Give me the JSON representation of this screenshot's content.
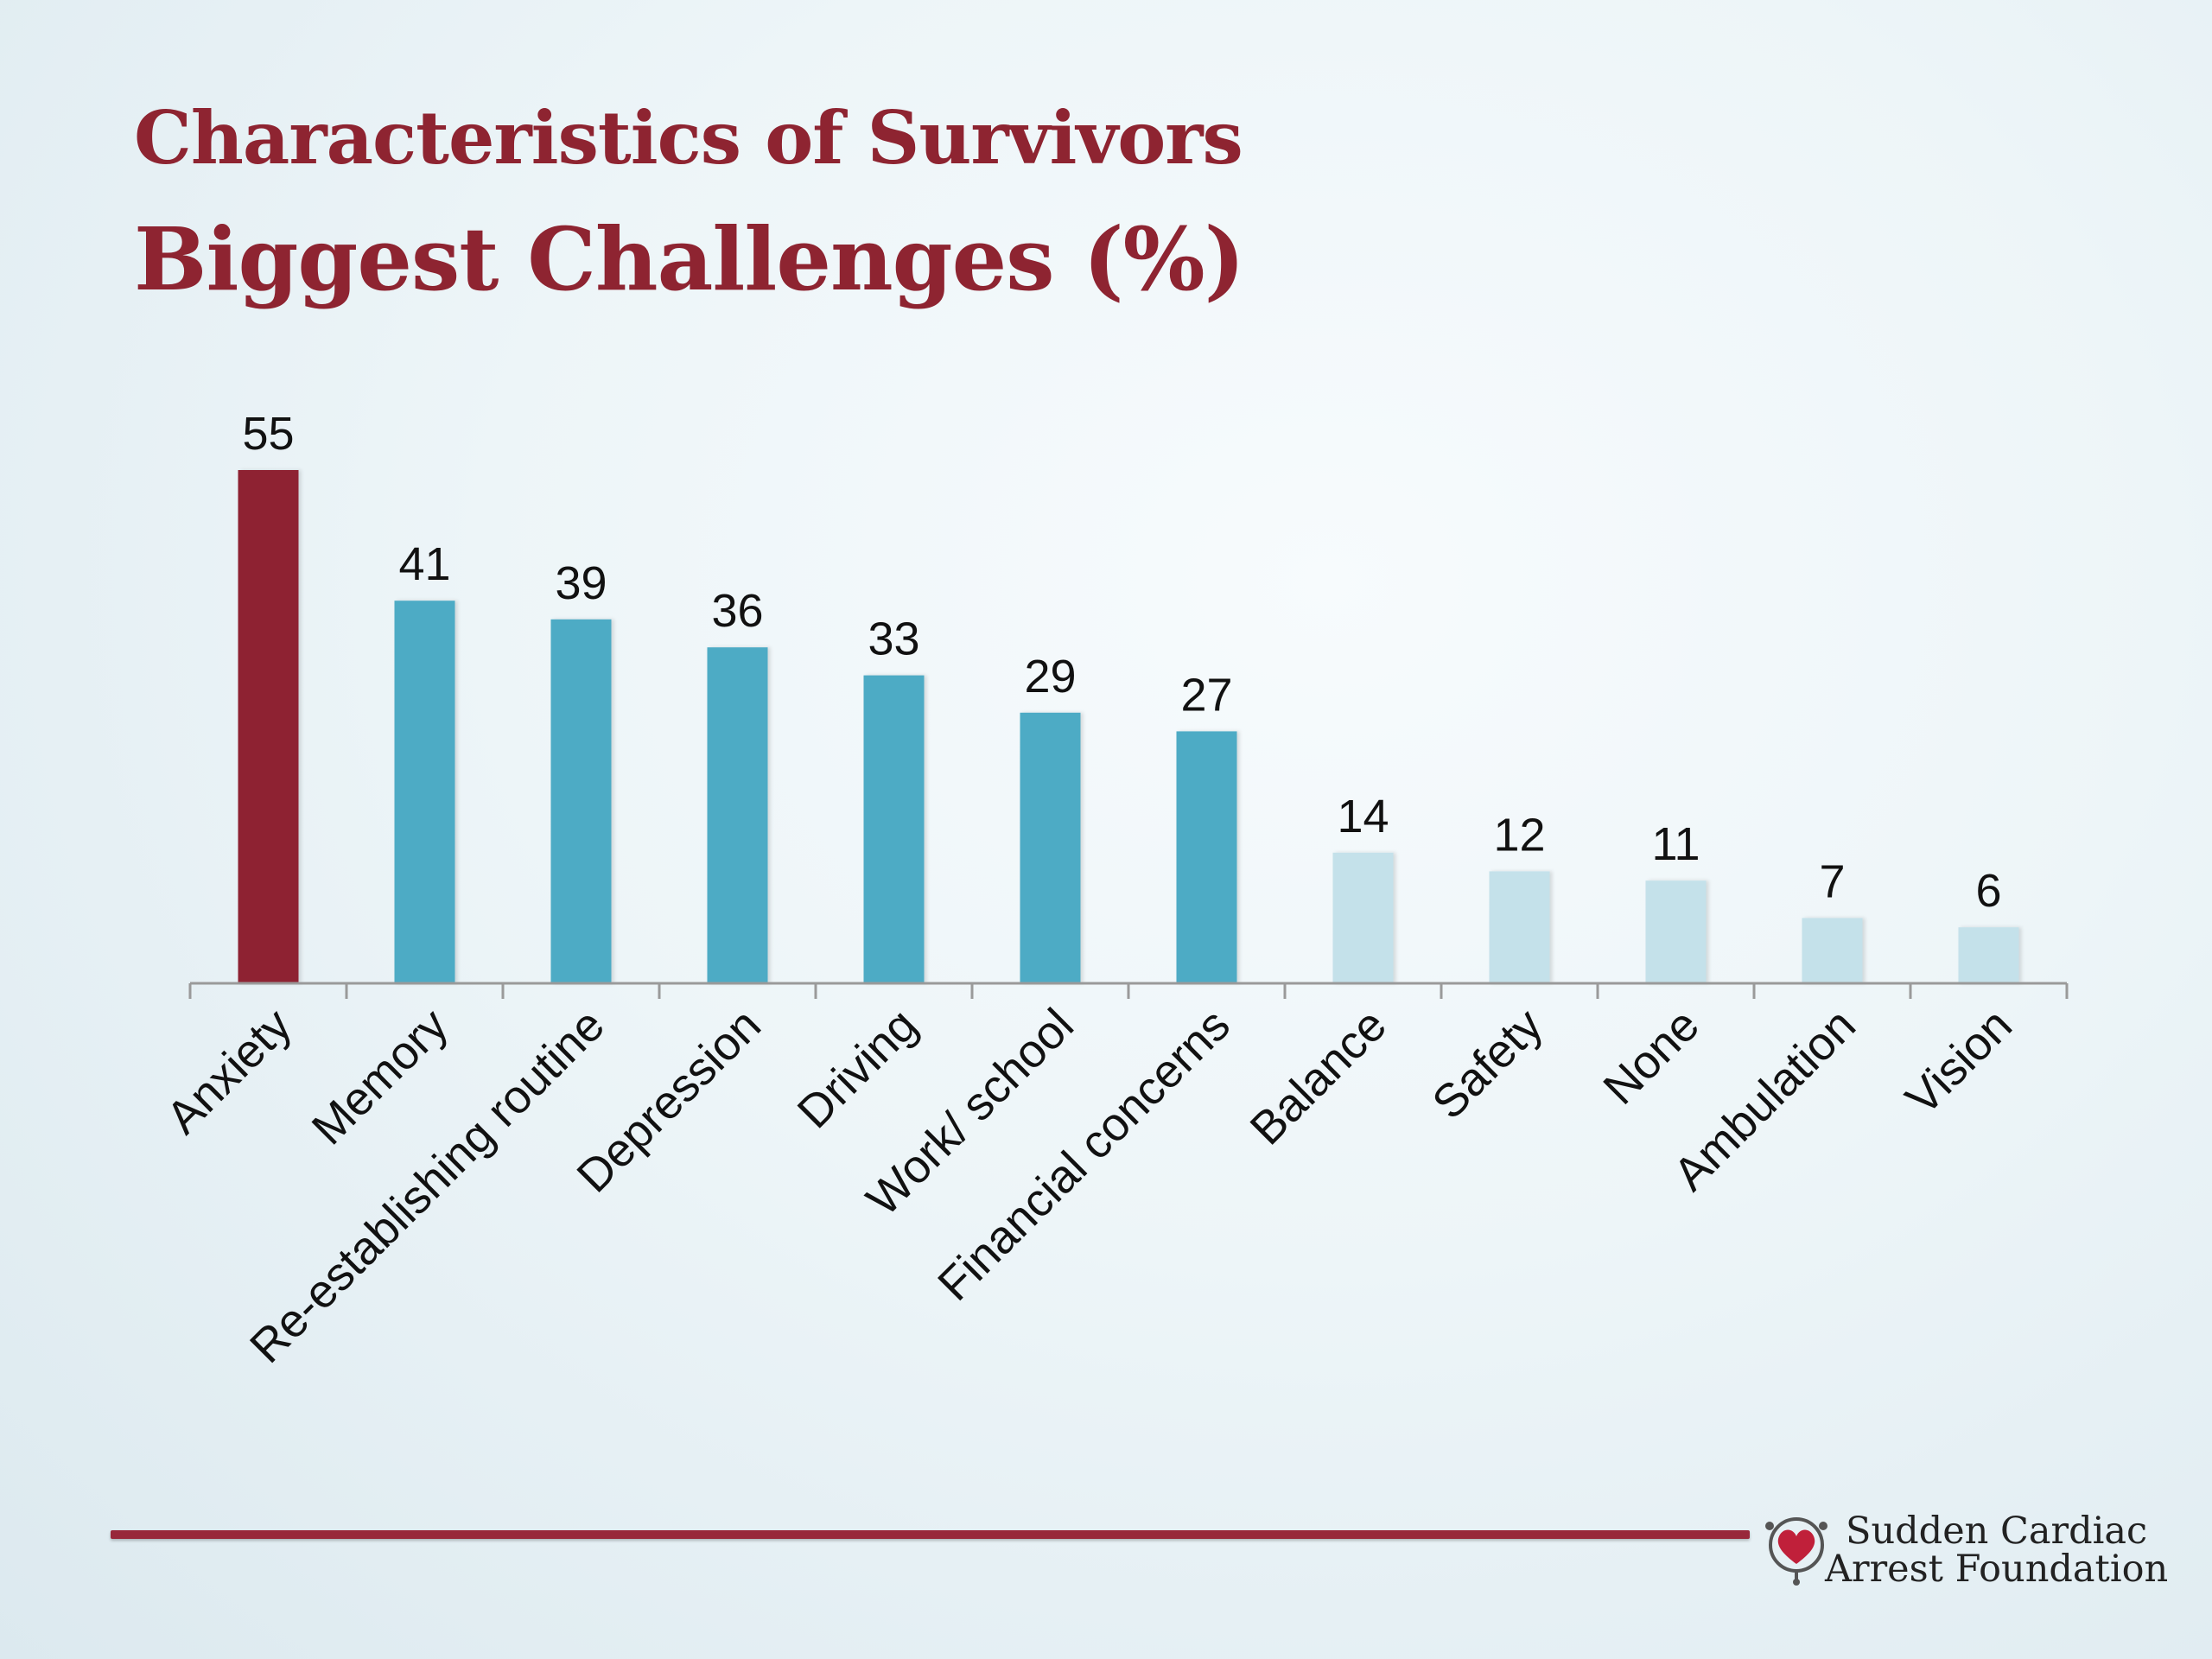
{
  "slide": {
    "title": "Characteristics of Survivors",
    "subtitle": "Biggest Challenges (%)"
  },
  "colors": {
    "title": "#8e2431",
    "highlight_bar": "#8e2431",
    "primary_bar": "#4dabc5",
    "light_bar": "#c4e1ea",
    "footer_rule": "#98283a"
  },
  "chart_data": {
    "type": "bar",
    "categories": [
      "Anxiety",
      "Memory",
      "Re-establishing routine",
      "Depression",
      "Driving",
      "Work/ school",
      "Financial concerns",
      "Balance",
      "Safety",
      "None",
      "Ambulation",
      "Vision"
    ],
    "values": [
      55,
      41,
      39,
      36,
      33,
      29,
      27,
      14,
      12,
      11,
      7,
      6
    ],
    "bar_color_groups": [
      "highlight",
      "primary",
      "primary",
      "primary",
      "primary",
      "primary",
      "primary",
      "light",
      "light",
      "light",
      "light",
      "light"
    ],
    "data_labels": true,
    "ylim": [
      0,
      60
    ],
    "grid": false,
    "legend": "none",
    "xlabel": "",
    "ylabel": ""
  },
  "footer": {
    "logo_line1": "Sudden Cardiac",
    "logo_line2": "Arrest Foundation",
    "logo_icon": "heart-icon"
  }
}
